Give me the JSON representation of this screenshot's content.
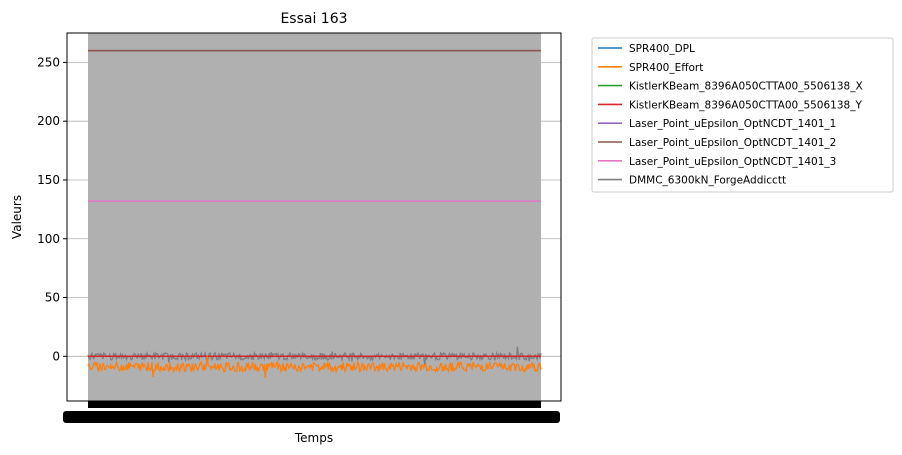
{
  "chart_data": {
    "type": "line",
    "title": "Essai 163",
    "xlabel": "Temps",
    "ylabel": "Valeurs",
    "ylim": [
      -38,
      275
    ],
    "yticks": [
      0,
      50,
      100,
      150,
      200,
      250
    ],
    "grid": "horizontal",
    "legend_placement": "outside-upper-right",
    "series": [
      {
        "name": "SPR400_DPL",
        "color": "#1f77b4",
        "value": 0
      },
      {
        "name": "SPR400_Effort",
        "color": "#ff7f0e",
        "value": -9,
        "noise": 4
      },
      {
        "name": "KistlerKBeam_8396A050CTTA00_5506138_X",
        "color": "#2ca02c",
        "value": 0
      },
      {
        "name": "KistlerKBeam_8396A050CTTA00_5506138_Y",
        "color": "#d62728",
        "value": 0
      },
      {
        "name": "Laser_Point_uEpsilon_OptNCDT_1401_1",
        "color": "#9467bd",
        "value": 260
      },
      {
        "name": "Laser_Point_uEpsilon_OptNCDT_1401_2",
        "color": "#8c564b",
        "value": 260
      },
      {
        "name": "Laser_Point_uEpsilon_OptNCDT_1401_3",
        "color": "#e377c2",
        "value": 132
      },
      {
        "name": "DMMC_6300kN_ForgeAddicctt",
        "color": "#7f7f7f",
        "value": 0,
        "noise": 3,
        "band": [
          -38,
          275
        ]
      }
    ]
  }
}
